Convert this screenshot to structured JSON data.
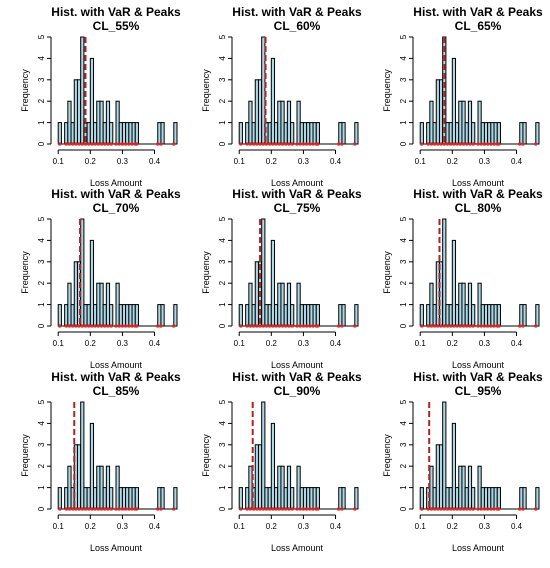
{
  "chart_data": {
    "type": "histogram-grid",
    "colors": {
      "bar_fill": "#add8e6",
      "bar_stroke": "#000000",
      "var_line": "#b22222",
      "peaks": "#d92626",
      "axes": "#000000"
    },
    "shared": {
      "title": "Hist. with VaR & Peaks",
      "xlabel": "Loss Amount",
      "ylabel": "Frequency",
      "xlim": [
        0.09,
        0.47
      ],
      "ylim": [
        0,
        5
      ],
      "x_ticks": [
        0.1,
        0.2,
        0.3,
        0.4
      ],
      "x_tick_labels": [
        "0.1",
        "0.2",
        "0.3",
        "0.4"
      ],
      "y_ticks": [
        0,
        1,
        2,
        3,
        4,
        5
      ],
      "y_tick_labels": [
        "0",
        "1",
        "2",
        "3",
        "4",
        "5"
      ],
      "bins": {
        "start": 0.1,
        "width": 0.01,
        "counts": [
          1,
          0,
          1,
          2,
          1,
          3,
          3,
          5,
          1,
          1,
          4,
          1,
          2,
          2,
          1,
          2,
          1,
          0,
          2,
          1,
          1,
          1,
          1,
          1,
          1,
          0,
          0,
          0,
          0,
          0,
          0,
          1,
          1,
          0,
          0,
          0,
          1
        ]
      },
      "peak_points": [
        0.105,
        0.125,
        0.135,
        0.145,
        0.155,
        0.165,
        0.175,
        0.185,
        0.195,
        0.205,
        0.215,
        0.225,
        0.235,
        0.245,
        0.255,
        0.265,
        0.28,
        0.29,
        0.3,
        0.31,
        0.32,
        0.33,
        0.34,
        0.345,
        0.41,
        0.42,
        0.46
      ]
    },
    "panels": [
      {
        "subtitle": "CL_55%",
        "var": 0.185
      },
      {
        "subtitle": "CL_60%",
        "var": 0.182
      },
      {
        "subtitle": "CL_65%",
        "var": 0.175
      },
      {
        "subtitle": "CL_70%",
        "var": 0.168
      },
      {
        "subtitle": "CL_75%",
        "var": 0.165
      },
      {
        "subtitle": "CL_80%",
        "var": 0.16
      },
      {
        "subtitle": "CL_85%",
        "var": 0.15
      },
      {
        "subtitle": "CL_90%",
        "var": 0.142
      },
      {
        "subtitle": "CL_95%",
        "var": 0.128
      }
    ]
  }
}
